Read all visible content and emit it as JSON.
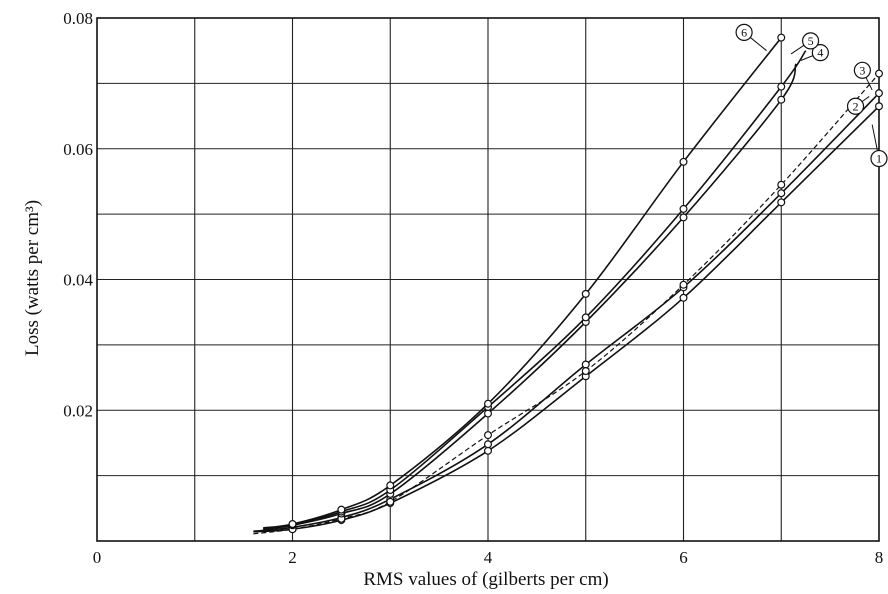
{
  "chart_data": {
    "type": "line",
    "title": "",
    "xlabel": "RMS values of (gilberts per cm)",
    "ylabel": "Loss (watts per cm³)",
    "xlim": [
      0,
      8
    ],
    "ylim": [
      0,
      0.08
    ],
    "x_ticks": [
      "0",
      "2",
      "4",
      "6",
      "8"
    ],
    "y_ticks": [
      "0.02",
      "0.04",
      "0.06",
      "0.08"
    ],
    "grid": true,
    "grid_x_step": 1,
    "grid_y_step": 0.01,
    "series": [
      {
        "name": "1",
        "style": "solid",
        "line_start": [
          1.6,
          0.0014
        ],
        "line_end": [
          8.0,
          0.0665
        ],
        "x": [
          2,
          2.5,
          3,
          4,
          5,
          6,
          7,
          8
        ],
        "y": [
          0.0018,
          0.0032,
          0.0058,
          0.0138,
          0.0252,
          0.0372,
          0.0518,
          0.0665
        ]
      },
      {
        "name": "2",
        "style": "solid",
        "line_start": [
          1.6,
          0.0015
        ],
        "line_end": [
          8.0,
          0.0685
        ],
        "x": [
          2,
          2.5,
          3,
          4,
          5,
          6,
          7,
          8
        ],
        "y": [
          0.0021,
          0.0036,
          0.0064,
          0.0148,
          0.027,
          0.0388,
          0.0532,
          0.0685
        ]
      },
      {
        "name": "3",
        "style": "dashed",
        "line_start": [
          1.6,
          0.0011
        ],
        "line_end": [
          8.0,
          0.0715
        ],
        "x": [
          2,
          2.5,
          3,
          4,
          5,
          6,
          7,
          8
        ],
        "y": [
          0.0018,
          0.0034,
          0.006,
          0.0162,
          0.026,
          0.0392,
          0.0545,
          0.0715
        ]
      },
      {
        "name": "4",
        "style": "solid",
        "line_start": [
          1.7,
          0.0018
        ],
        "line_end": [
          7.15,
          0.073
        ],
        "x": [
          2,
          2.5,
          3,
          4,
          5,
          6,
          7
        ],
        "y": [
          0.0024,
          0.0042,
          0.0072,
          0.0195,
          0.0335,
          0.0495,
          0.0675
        ]
      },
      {
        "name": "5",
        "style": "solid",
        "line_start": [
          1.7,
          0.0019
        ],
        "line_end": [
          7.25,
          0.075
        ],
        "x": [
          2,
          2.5,
          3,
          4,
          5,
          6,
          7
        ],
        "y": [
          0.0025,
          0.0045,
          0.0078,
          0.0205,
          0.0342,
          0.0508,
          0.0695
        ]
      },
      {
        "name": "6",
        "style": "solid",
        "line_start": [
          1.7,
          0.002
        ],
        "line_end": [
          7.0,
          0.077
        ],
        "x": [
          2,
          2.5,
          3,
          4,
          5,
          6,
          7
        ],
        "y": [
          0.0026,
          0.0048,
          0.0085,
          0.021,
          0.0378,
          0.058,
          0.077
        ]
      }
    ],
    "labels": [
      {
        "text": "1",
        "x": 8.0,
        "y": 0.0585,
        "leader_to": [
          7.93,
          0.0637
        ]
      },
      {
        "text": "2",
        "x": 7.76,
        "y": 0.0665,
        "leader_to": [
          7.9,
          0.068
        ]
      },
      {
        "text": "3",
        "x": 7.83,
        "y": 0.072,
        "leader_to": [
          7.93,
          0.069
        ]
      },
      {
        "text": "4",
        "x": 7.4,
        "y": 0.0747,
        "leader_to": [
          7.2,
          0.0735
        ]
      },
      {
        "text": "5",
        "x": 7.3,
        "y": 0.0765,
        "leader_to": [
          7.1,
          0.0745
        ]
      },
      {
        "text": "6",
        "x": 6.62,
        "y": 0.0778,
        "leader_to": [
          6.85,
          0.075
        ]
      }
    ]
  }
}
